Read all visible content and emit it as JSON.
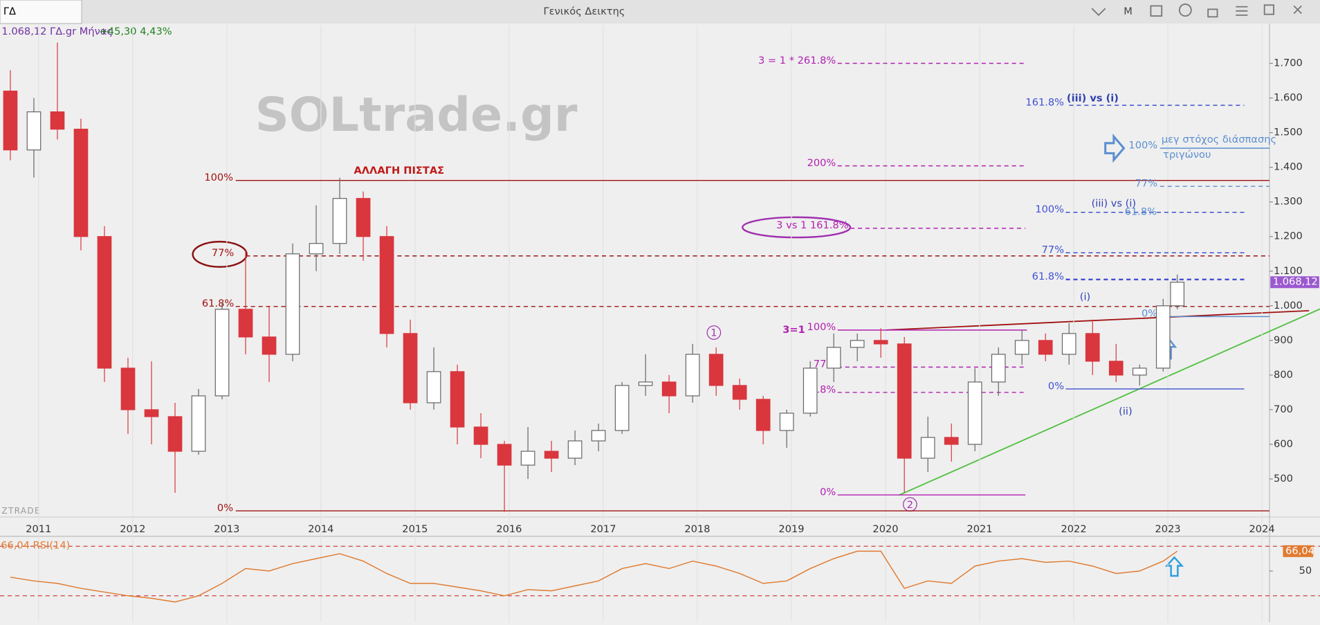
{
  "toolbar": {
    "tab": "ΓΔ",
    "title": "Γενικός Δεικτης",
    "button": "M"
  },
  "header": {
    "price_line": "1.068,12 ΓΔ.gr Μήνας",
    "change": "+45,30 4,43%"
  },
  "watermark": "SOLtrade.gr",
  "watermark_small": "ZTRADE",
  "chart_data": {
    "type": "candlestick",
    "up_color": "#ffffff",
    "down_color": "#d9363e",
    "x": [
      2010.7,
      2010.95,
      2011.2,
      2011.45,
      2011.7,
      2011.95,
      2012.2,
      2012.45,
      2012.7,
      2012.95,
      2013.2,
      2013.45,
      2013.7,
      2013.95,
      2014.2,
      2014.45,
      2014.7,
      2014.95,
      2015.2,
      2015.45,
      2015.7,
      2015.95,
      2016.2,
      2016.45,
      2016.7,
      2016.95,
      2017.2,
      2017.45,
      2017.7,
      2017.95,
      2018.2,
      2018.45,
      2018.7,
      2018.95,
      2019.2,
      2019.45,
      2019.7,
      2019.95,
      2020.2,
      2020.45,
      2020.7,
      2020.95,
      2021.2,
      2021.45,
      2021.7,
      2021.95,
      2022.2,
      2022.45,
      2022.7,
      2022.95,
      2023.1
    ],
    "open": [
      1620,
      1450,
      1560,
      1510,
      1200,
      820,
      700,
      680,
      580,
      740,
      990,
      910,
      860,
      1150,
      1180,
      1310,
      1200,
      920,
      720,
      810,
      650,
      600,
      540,
      580,
      560,
      610,
      640,
      770,
      780,
      740,
      860,
      770,
      730,
      640,
      690,
      820,
      880,
      900,
      890,
      560,
      620,
      600,
      780,
      860,
      900,
      860,
      920,
      840,
      800,
      820,
      1000
    ],
    "high": [
      1680,
      1600,
      1760,
      1540,
      1230,
      850,
      840,
      720,
      760,
      1010,
      1160,
      1000,
      1180,
      1290,
      1370,
      1330,
      1230,
      960,
      880,
      830,
      690,
      610,
      650,
      610,
      640,
      660,
      780,
      860,
      800,
      890,
      880,
      790,
      740,
      700,
      840,
      920,
      920,
      935,
      910,
      680,
      660,
      820,
      880,
      930,
      920,
      950,
      960,
      890,
      830,
      1020,
      1090
    ],
    "low": [
      1420,
      1370,
      1480,
      1160,
      780,
      630,
      600,
      460,
      570,
      730,
      860,
      780,
      840,
      1100,
      1150,
      1130,
      880,
      700,
      700,
      600,
      560,
      405,
      500,
      520,
      540,
      580,
      630,
      740,
      690,
      720,
      740,
      700,
      600,
      590,
      680,
      780,
      840,
      850,
      460,
      520,
      550,
      580,
      740,
      830,
      840,
      830,
      800,
      780,
      770,
      810,
      990
    ],
    "close": [
      1450,
      1560,
      1510,
      1200,
      820,
      700,
      680,
      580,
      740,
      990,
      910,
      860,
      1150,
      1180,
      1310,
      1200,
      920,
      720,
      810,
      650,
      600,
      540,
      580,
      560,
      610,
      640,
      770,
      780,
      740,
      860,
      770,
      730,
      640,
      690,
      820,
      880,
      900,
      890,
      560,
      620,
      600,
      780,
      860,
      900,
      860,
      920,
      840,
      800,
      820,
      1000,
      1068.12
    ],
    "last_price_tag": "1.068,12",
    "xlim": [
      2010.59,
      2024.08
    ],
    "xticks": [
      2011,
      2012,
      2013,
      2014,
      2015,
      2016,
      2017,
      2018,
      2019,
      2020,
      2021,
      2022,
      2023,
      2024
    ],
    "ylim": [
      400,
      1810
    ],
    "yticks": [
      500,
      600,
      700,
      800,
      900,
      {
        "value": 1000,
        "label": "1.000"
      },
      {
        "value": 1100,
        "label": "1.100"
      },
      {
        "value": 1200,
        "label": "1.200"
      },
      {
        "value": 1300,
        "label": "1.300"
      },
      {
        "value": 1400,
        "label": "1.400"
      },
      {
        "value": 1500,
        "label": "1.500"
      },
      {
        "value": 1600,
        "label": "1.600"
      },
      {
        "value": 1700,
        "label": "1.700"
      }
    ],
    "grid": true,
    "fib_lines": [
      {
        "label": "100%",
        "value": 1362,
        "color": "#a01010",
        "dashed": false
      },
      {
        "label": "77%",
        "value": 1144,
        "color": "#a01010",
        "dashed": true
      },
      {
        "label": "61.8%",
        "value": 998,
        "color": "#a01010",
        "dashed": true
      },
      {
        "label": "0%",
        "value": 408,
        "color": "#a01010",
        "dashed": false
      },
      {
        "label": "3 = 1 * 261.8%",
        "value": 1700,
        "color": "#b020b0",
        "dashed": true
      },
      {
        "label": "200%",
        "value": 1404,
        "color": "#b020b0",
        "dashed": true
      },
      {
        "label": "3 vs 1 161.8%",
        "value": 1224,
        "color": "#b020b0",
        "dashed": true
      },
      {
        "label": "100%",
        "value": 930,
        "color": "#b020b0",
        "dashed": false
      },
      {
        "label": "77%",
        "value": 823,
        "color": "#b020b0",
        "dashed": true
      },
      {
        "label": "61.8%",
        "value": 750,
        "color": "#b020b0",
        "dashed": true
      },
      {
        "label": "0%",
        "value": 454,
        "color": "#b020b0",
        "dashed": false
      },
      {
        "label": "161.8%",
        "value": 1579,
        "color": "#4050d0",
        "dashed": true
      },
      {
        "label": "100%",
        "value": 1455,
        "color": "#5b8fd0",
        "dashed": false
      },
      {
        "label": "77%",
        "value": 1345,
        "color": "#5b8fd0",
        "dashed": true
      },
      {
        "label": "100%",
        "value": 1270,
        "color": "#4050d0",
        "dashed": true
      },
      {
        "label": "77%",
        "value": 1153,
        "color": "#4050d0",
        "dashed": true
      },
      {
        "label": "61.8%",
        "value": 1076,
        "color": "#4050d0",
        "dashed": true
      },
      {
        "label": "0%",
        "value": 969,
        "color": "#5b8fd0",
        "dashed": false
      },
      {
        "label": "0%",
        "value": 760,
        "color": "#4050d0",
        "dashed": false
      }
    ],
    "notes": [
      "ΑΛΛΑΓΗ ΠΙΣΤΑΣ",
      "(iii) vs (i)",
      "μεγ στόχος διάσπασης",
      "τριγώνου",
      "(iii) vs  (i)",
      "61.8%",
      "3=1",
      "(i)",
      "(ii)",
      "1",
      "2"
    ],
    "rsi": {
      "label": "66,04 RSI(14)",
      "tag": "66,04",
      "color": "#e07b30",
      "ylim": [
        10,
        78
      ],
      "yticks": [
        50
      ],
      "levels": [
        70,
        30
      ],
      "values": [
        45,
        42,
        40,
        36,
        33,
        30,
        28,
        25,
        30,
        40,
        52,
        50,
        56,
        60,
        64,
        58,
        48,
        40,
        40,
        37,
        34,
        30,
        35,
        34,
        38,
        42,
        52,
        56,
        52,
        58,
        54,
        48,
        40,
        42,
        52,
        60,
        66,
        66,
        36,
        42,
        40,
        54,
        58,
        60,
        57,
        58,
        54,
        48,
        50,
        58,
        66.04
      ]
    }
  }
}
